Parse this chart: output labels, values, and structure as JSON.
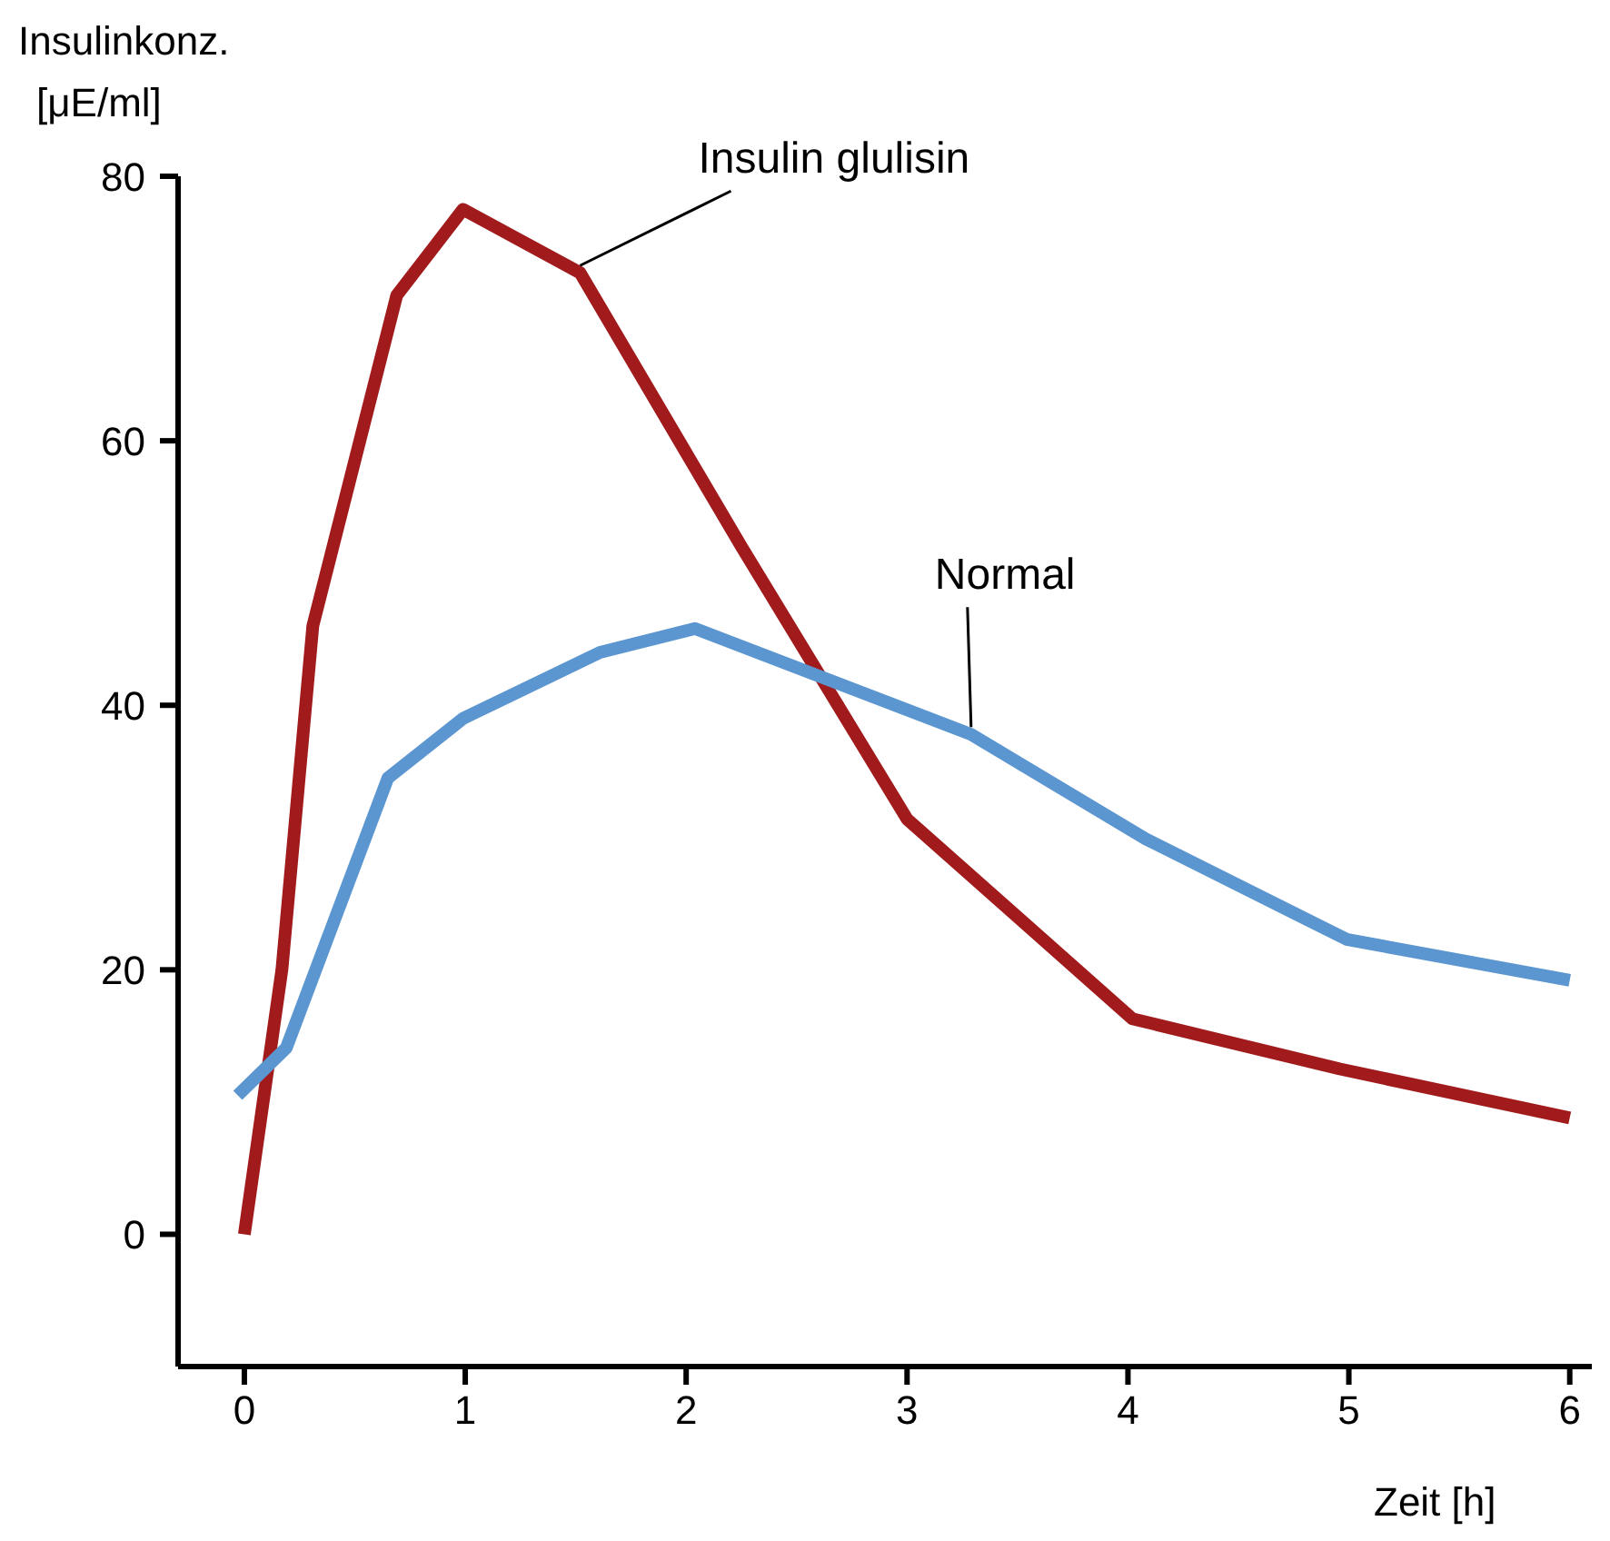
{
  "chart_data": {
    "type": "line",
    "ylabel": "Insulinkonz. [μE/ml]",
    "xlabel": "Zeit [h]",
    "xlim": [
      -0.3,
      6.1
    ],
    "ylim": [
      -10,
      80
    ],
    "xticks": [
      0,
      1,
      2,
      3,
      4,
      5,
      6
    ],
    "yticks": [
      0,
      20,
      40,
      60,
      80
    ],
    "grid": false,
    "legend": false,
    "marker": "none",
    "line_style": "solid",
    "series": [
      {
        "name": "Insulin glulisin",
        "color": "#a11a1c",
        "x": [
          0,
          0.17,
          0.31,
          0.69,
          0.99,
          1.52,
          2.25,
          3.0,
          4.02,
          4.96,
          6
        ],
        "values": [
          0,
          20,
          46,
          71,
          77.5,
          72.7,
          52,
          31.4,
          16.3,
          12.5,
          8.8
        ]
      },
      {
        "name": "Normal",
        "color": "#5b96d0",
        "x": [
          -0.03,
          0.19,
          0.65,
          0.99,
          1.61,
          2.04,
          3.29,
          4.08,
          4.99,
          6
        ],
        "values": [
          10.5,
          14.1,
          34.5,
          39,
          44,
          45.8,
          37.8,
          29.9,
          22.3,
          19.2
        ]
      }
    ]
  }
}
